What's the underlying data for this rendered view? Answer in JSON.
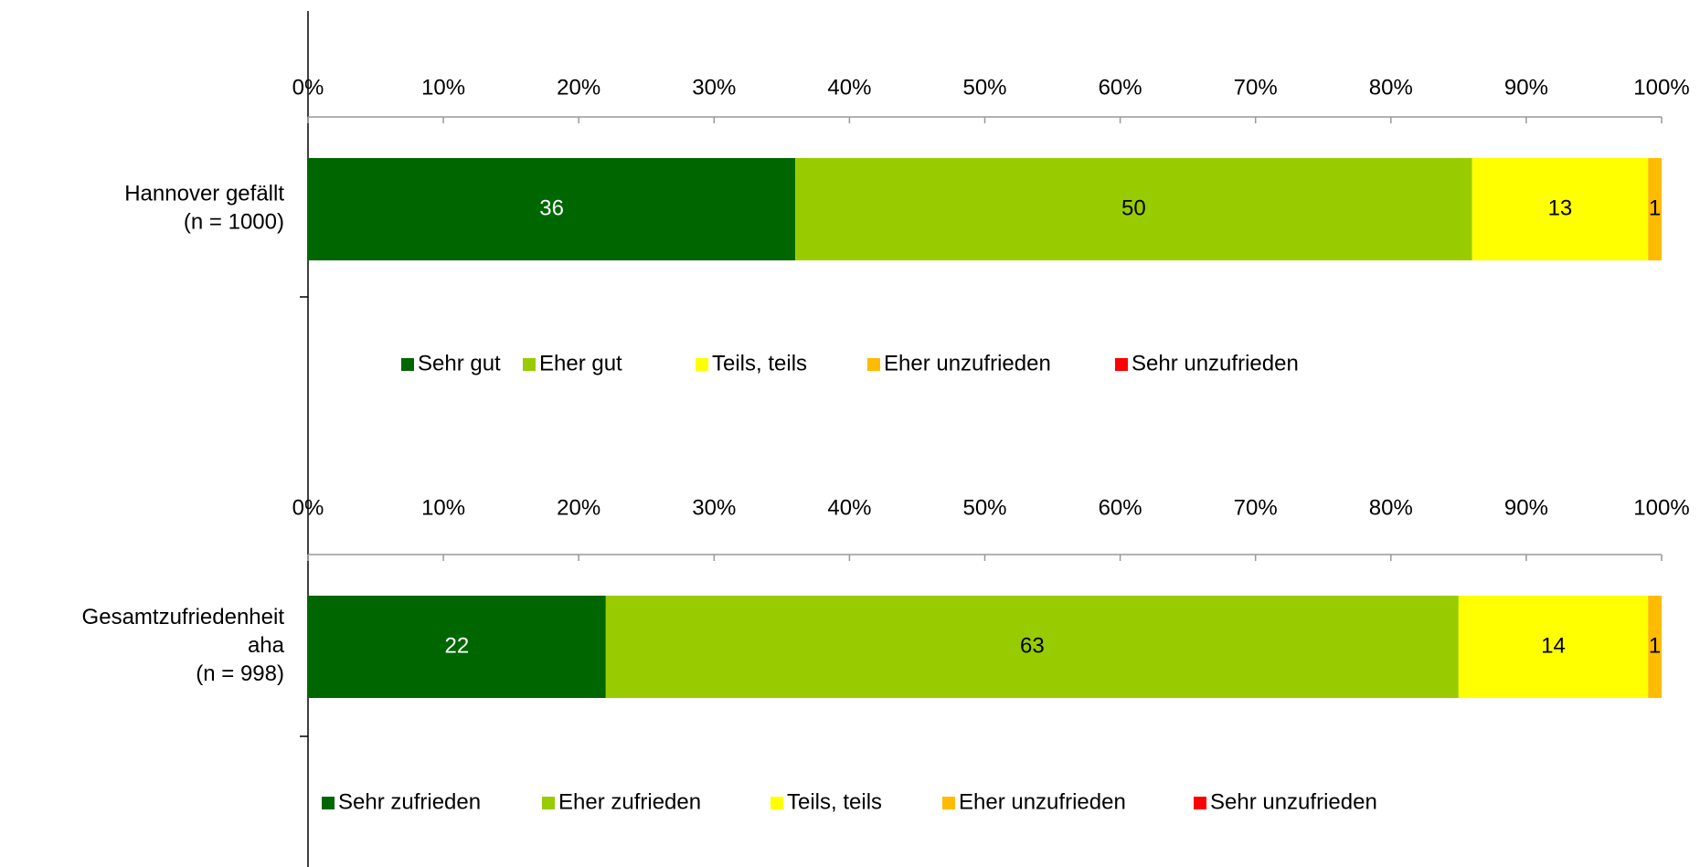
{
  "chart_data": [
    {
      "type": "bar",
      "orientation": "horizontal",
      "stacked": true,
      "categories": [
        "Hannover gefällt\n(n = 1000)"
      ],
      "series": [
        {
          "name": "Sehr gut",
          "color": "#006600",
          "values": [
            36
          ]
        },
        {
          "name": "Eher gut",
          "color": "#99cc00",
          "values": [
            50
          ]
        },
        {
          "name": "Teils, teils",
          "color": "#ffff00",
          "values": [
            13
          ]
        },
        {
          "name": "Eher unzufrieden",
          "color": "#ffbb00",
          "values": [
            1
          ]
        },
        {
          "name": "Sehr unzufrieden",
          "color": "#ff0000",
          "values": [
            0
          ]
        }
      ],
      "xlim": [
        0,
        100
      ],
      "xticks": [
        {
          "value": 0,
          "label": "0%"
        },
        {
          "value": 10,
          "label": "10%"
        },
        {
          "value": 20,
          "label": "20%"
        },
        {
          "value": 30,
          "label": "30%"
        },
        {
          "value": 40,
          "label": "40%"
        },
        {
          "value": 50,
          "label": "50%"
        },
        {
          "value": 60,
          "label": "60%"
        },
        {
          "value": 70,
          "label": "70%"
        },
        {
          "value": 80,
          "label": "80%"
        },
        {
          "value": 90,
          "label": "90%"
        },
        {
          "value": 100,
          "label": "100%"
        }
      ],
      "legend": "bottom"
    },
    {
      "type": "bar",
      "orientation": "horizontal",
      "stacked": true,
      "categories": [
        "Gesamtzufriedenheit\naha\n(n = 998)"
      ],
      "series": [
        {
          "name": "Sehr zufrieden",
          "color": "#006600",
          "values": [
            22
          ]
        },
        {
          "name": "Eher zufrieden",
          "color": "#99cc00",
          "values": [
            63
          ]
        },
        {
          "name": "Teils, teils",
          "color": "#ffff00",
          "values": [
            14
          ]
        },
        {
          "name": "Eher unzufrieden",
          "color": "#ffbb00",
          "values": [
            1
          ]
        },
        {
          "name": "Sehr unzufrieden",
          "color": "#ff0000",
          "values": [
            0
          ]
        }
      ],
      "xlim": [
        0,
        100
      ],
      "xticks": [
        {
          "value": 0,
          "label": "0%"
        },
        {
          "value": 10,
          "label": "10%"
        },
        {
          "value": 20,
          "label": "20%"
        },
        {
          "value": 30,
          "label": "30%"
        },
        {
          "value": 40,
          "label": "40%"
        },
        {
          "value": 50,
          "label": "50%"
        },
        {
          "value": 60,
          "label": "60%"
        },
        {
          "value": 70,
          "label": "70%"
        },
        {
          "value": 80,
          "label": "80%"
        },
        {
          "value": 90,
          "label": "90%"
        },
        {
          "value": 100,
          "label": "100%"
        }
      ],
      "legend": "bottom"
    }
  ]
}
